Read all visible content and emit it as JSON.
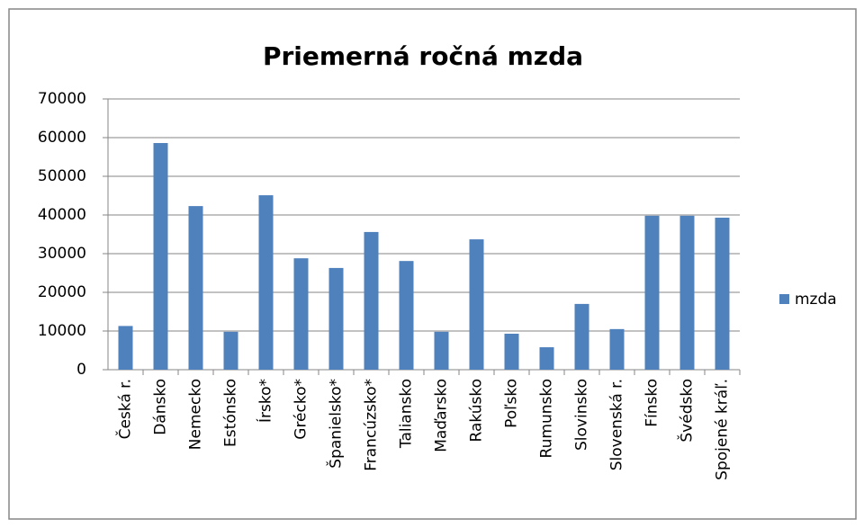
{
  "chart_data": {
    "type": "bar",
    "title": "Priemerná ročná mzda",
    "categories": [
      "Česká r.",
      "Dánsko",
      "Nemecko",
      "Estónsko",
      "Írsko*",
      "Grécko*",
      "Španielsko*",
      "Francúzsko*",
      "Taliansko",
      "Maďarsko",
      "Rakúsko",
      "Poľsko",
      "Rumunsko",
      "Slovinsko",
      "Slovenská r.",
      "Fínsko",
      "Švédsko",
      "Spojené kráľ."
    ],
    "series": [
      {
        "name": "mzda",
        "color": "#4f81bd",
        "values": [
          11300,
          58600,
          42300,
          9800,
          45100,
          28800,
          26300,
          35600,
          28100,
          9800,
          33700,
          9300,
          5800,
          17000,
          10500,
          39800,
          39800,
          39300
        ]
      }
    ],
    "ylim": [
      0,
      70000
    ],
    "yticks": [
      0,
      10000,
      20000,
      30000,
      40000,
      50000,
      60000,
      70000
    ],
    "grid": true,
    "legend": "right"
  }
}
